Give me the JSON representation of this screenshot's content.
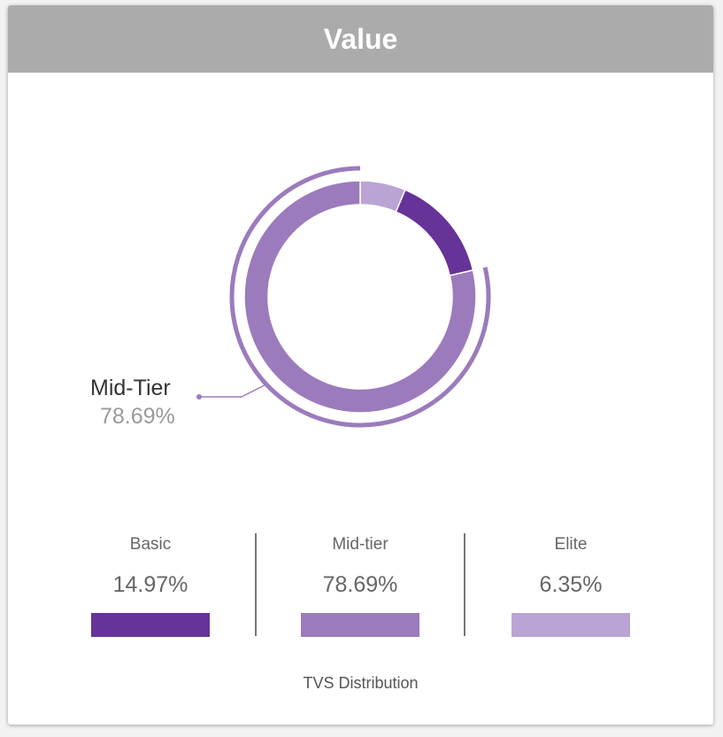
{
  "header": {
    "title": "Value"
  },
  "chart_data": {
    "type": "pie",
    "categories": [
      "Basic",
      "Mid-tier",
      "Elite"
    ],
    "values": [
      14.97,
      78.69,
      6.35
    ],
    "value_labels": [
      "14.97%",
      "78.69%",
      "6.35%"
    ],
    "colors": [
      "#663399",
      "#9b7bbc",
      "#b9a4d4"
    ],
    "highlighted": {
      "label": "Mid-Tier",
      "value_label": "78.69%"
    },
    "xlabel": "TVS Distribution"
  }
}
